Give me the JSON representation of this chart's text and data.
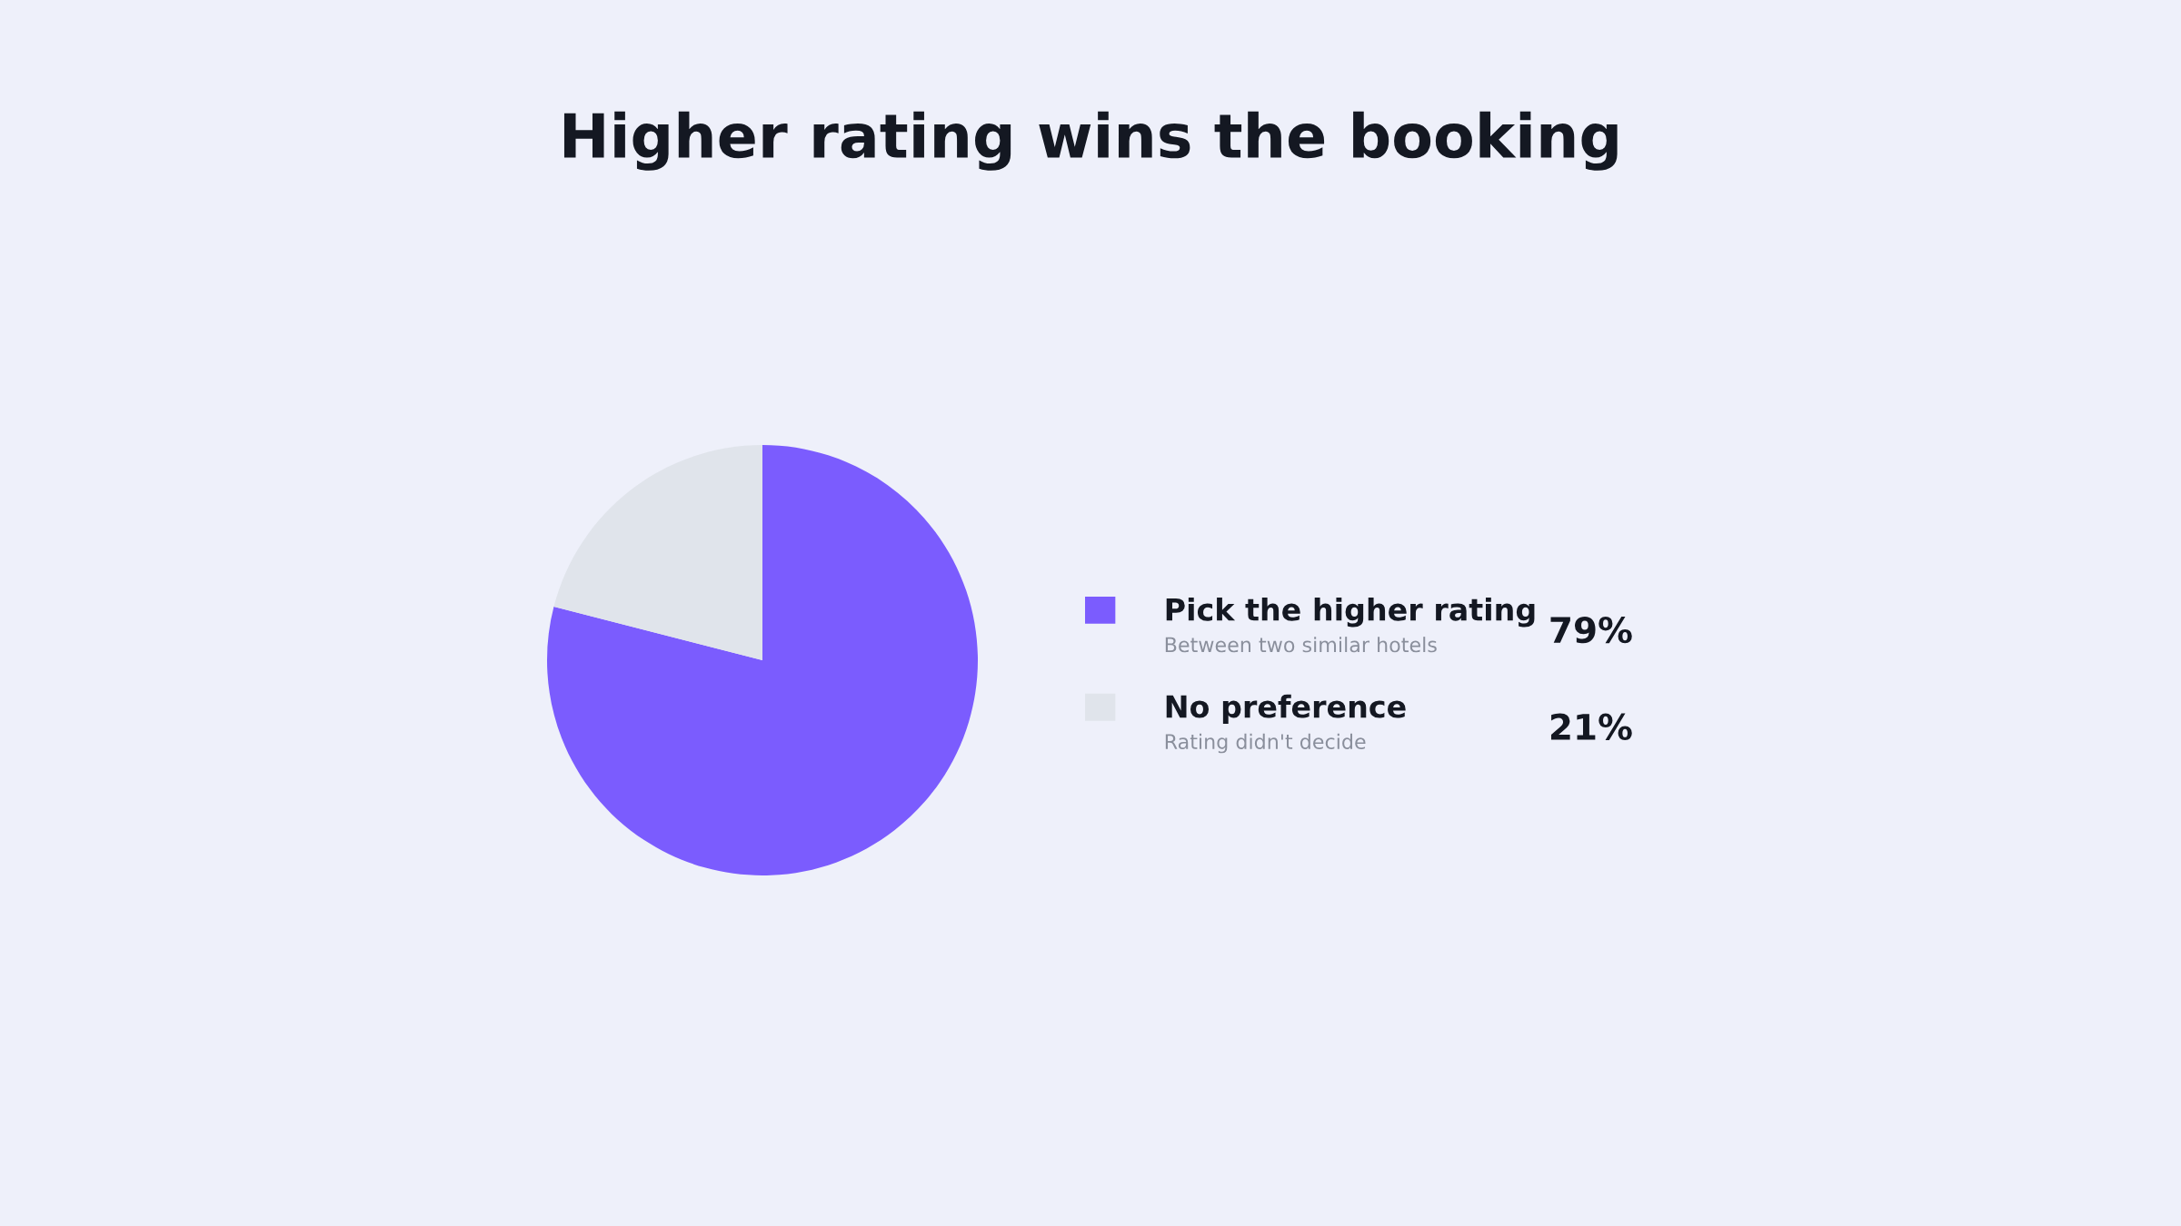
{
  "chart_data": {
    "type": "pie",
    "title": "Higher rating wins the booking",
    "categories": [
      "Pick the higher rating",
      "No preference"
    ],
    "values": [
      79,
      21
    ],
    "colors": [
      "#7b5cfe",
      "#e0e4eb"
    ],
    "annotations": [
      "Between two similar hotels",
      "Rating didn't decide"
    ],
    "value_labels": [
      "79%",
      "21%"
    ],
    "legend": "right"
  }
}
